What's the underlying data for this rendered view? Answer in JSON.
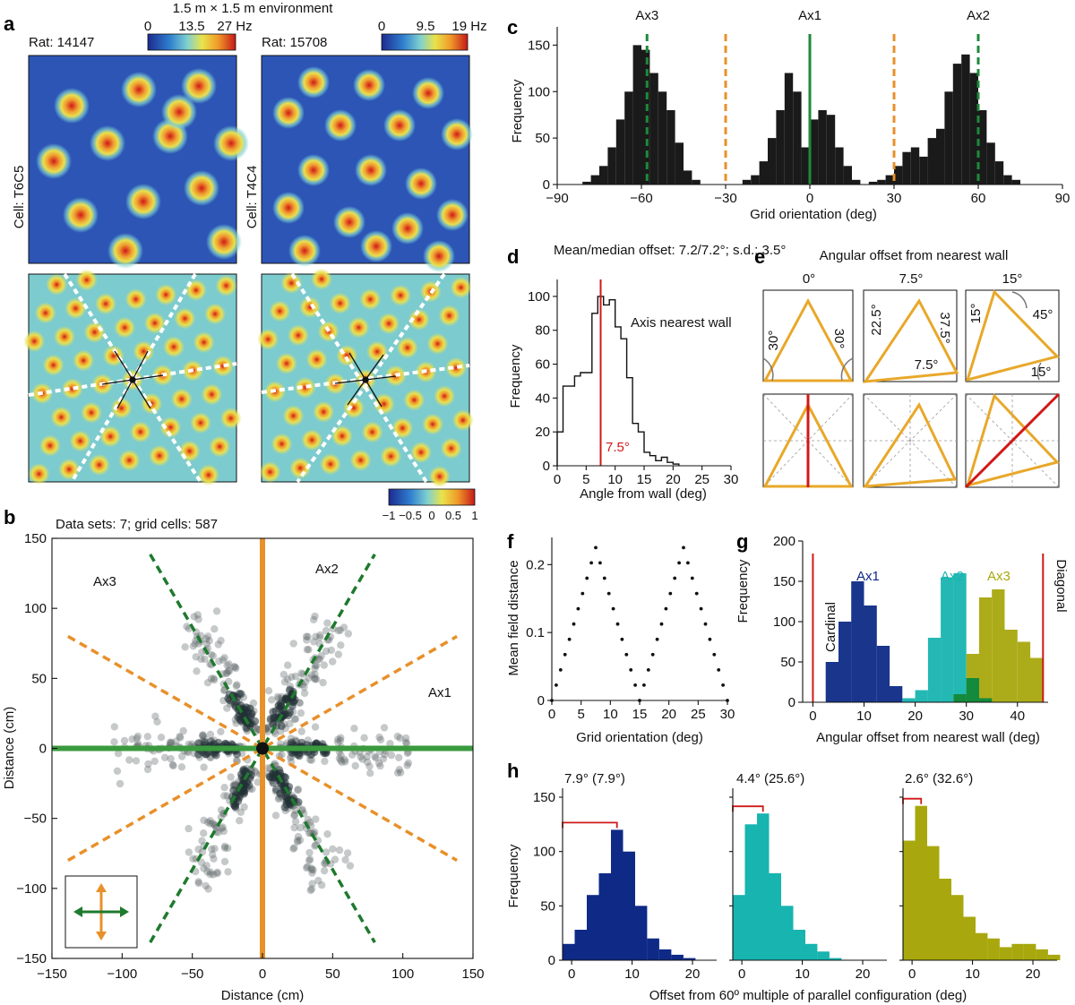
{
  "panel_labels": {
    "a": "a",
    "b": "b",
    "c": "c",
    "d": "d",
    "e": "e",
    "f": "f",
    "g": "g",
    "h": "h"
  },
  "panel_a": {
    "environment": "1.5 m × 1.5 m environment",
    "left": {
      "rat": "Rat: 14147",
      "cell": "Cell: T6C5",
      "cbar_ticks": [
        "0",
        "13.5",
        "27 Hz"
      ]
    },
    "right": {
      "rat": "Rat: 15708",
      "cell": "Cell: T4C4",
      "cbar_ticks": [
        "0",
        "9.5",
        "19 Hz"
      ]
    },
    "autocorr_cbar_ticks": [
      "−1",
      "−0.5",
      "0",
      "0.5",
      "1"
    ],
    "colors": {
      "low": "#1c3f9f",
      "mid": "#7fc8d8",
      "high": "#e8b82a",
      "peak": "#c01818"
    }
  },
  "panel_b": {
    "header": "Data sets: 7; grid cells: 587",
    "xlabel": "Distance (cm)",
    "ylabel": "Distance (cm)",
    "axis_labels": {
      "ax1": "Ax1",
      "ax2": "Ax2",
      "ax3": "Ax3"
    },
    "xticks": [
      "−150",
      "−100",
      "−50",
      "0",
      "50",
      "100",
      "150"
    ],
    "yticks": [
      "150",
      "100",
      "50",
      "0",
      "−50",
      "−100",
      "−150"
    ],
    "colors": {
      "green": "#1e7a2e",
      "orange": "#e8902a",
      "points": "#5b6468"
    }
  },
  "panel_e": {
    "title": "Angular offset from nearest wall",
    "columns": [
      "0°",
      "7.5°",
      "15°"
    ],
    "angle_labels": {
      "c0": [
        "30°",
        "30°"
      ],
      "c1": [
        "22.5°",
        "37.5°",
        "7.5°"
      ],
      "c2": [
        "15°",
        "45°",
        "15°"
      ]
    },
    "colors": {
      "triangle": "#e8a82a",
      "red": "#d01818"
    }
  },
  "chart_data": [
    {
      "panel": "c",
      "type": "bar",
      "title": "",
      "xlabel": "Grid orientation (deg)",
      "ylabel": "Frequency",
      "xlim": [
        -90,
        90
      ],
      "ylim": [
        0,
        160
      ],
      "xticks": [
        "−90",
        "−60",
        "−30",
        "0",
        "30",
        "60",
        "90"
      ],
      "yticks": [
        "0",
        "50",
        "100",
        "150"
      ],
      "bin_width": 3,
      "bin_starts": [
        -81,
        -78,
        -75,
        -72,
        -69,
        -66,
        -63,
        -60,
        -57,
        -54,
        -51,
        -48,
        -45,
        -42,
        -24,
        -21,
        -18,
        -15,
        -12,
        -9,
        -6,
        -3,
        0,
        3,
        6,
        9,
        12,
        15,
        21,
        24,
        27,
        30,
        33,
        36,
        39,
        42,
        45,
        48,
        51,
        54,
        57,
        60,
        63,
        66,
        69,
        72
      ],
      "values": [
        3,
        10,
        20,
        40,
        70,
        100,
        150,
        145,
        120,
        100,
        80,
        45,
        15,
        5,
        5,
        10,
        25,
        50,
        80,
        120,
        100,
        40,
        70,
        80,
        75,
        40,
        20,
        5,
        3,
        5,
        10,
        20,
        35,
        40,
        30,
        50,
        60,
        100,
        130,
        140,
        120,
        80,
        45,
        25,
        10,
        5
      ],
      "markers": [
        {
          "label": "Ax3",
          "x": -58,
          "style": "green-dashed"
        },
        {
          "label": "Ax1",
          "x": 0,
          "style": "green-solid"
        },
        {
          "label": "Ax2",
          "x": 60,
          "style": "green-dashed"
        },
        {
          "label": "",
          "x": -30,
          "style": "orange-dashed"
        },
        {
          "label": "",
          "x": 30,
          "style": "orange-dashed"
        }
      ]
    },
    {
      "panel": "d",
      "type": "bar",
      "title": "Mean/median offset: 7.2/7.2°; s.d.: 3.5°",
      "xlabel": "Angle from wall (deg)",
      "ylabel": "Frequency",
      "xlim": [
        0,
        30
      ],
      "ylim": [
        0,
        110
      ],
      "xticks": [
        "0",
        "5",
        "10",
        "15",
        "20",
        "25",
        "30"
      ],
      "yticks": [
        "0",
        "20",
        "40",
        "60",
        "80",
        "100"
      ],
      "bin_width": 1,
      "bin_starts": [
        0,
        1,
        2,
        3,
        4,
        5,
        6,
        7,
        8,
        9,
        10,
        11,
        12,
        13,
        14,
        15,
        16,
        17,
        18,
        19,
        20
      ],
      "values": [
        20,
        47,
        47,
        53,
        55,
        55,
        90,
        100,
        95,
        98,
        82,
        75,
        52,
        25,
        20,
        8,
        6,
        3,
        5,
        2,
        1
      ],
      "annotations": [
        "Axis nearest wall",
        "7.5°"
      ],
      "marker_x": 7.5
    },
    {
      "panel": "f",
      "type": "line",
      "title": "",
      "xlabel": "Grid orientation (deg)",
      "ylabel": "Mean field distance",
      "xlim": [
        0,
        30
      ],
      "ylim": [
        0,
        0.24
      ],
      "xticks": [
        "0",
        "5",
        "10",
        "15",
        "20",
        "25",
        "30"
      ],
      "yticks": [
        "0",
        "0.1",
        "0.2"
      ],
      "x": [
        0,
        7.5,
        15,
        22.5,
        30
      ],
      "y": [
        0,
        0.225,
        0,
        0.225,
        0
      ]
    },
    {
      "panel": "g",
      "type": "bar",
      "title": "",
      "xlabel": "Angular offset from nearest wall (deg)",
      "ylabel": "Frequency",
      "xlim": [
        0,
        46
      ],
      "ylim": [
        0,
        200
      ],
      "xticks": [
        "0",
        "10",
        "20",
        "30",
        "40"
      ],
      "yticks": [
        "0",
        "50",
        "100",
        "150",
        "200"
      ],
      "bin_width": 2.5,
      "bin_starts": [
        0,
        2.5,
        5,
        7.5,
        10,
        12.5,
        15,
        17.5,
        20,
        22.5,
        25,
        27.5,
        30,
        32.5,
        35,
        37.5,
        40,
        42.5
      ],
      "series": [
        {
          "name": "Ax1",
          "color": "#0e2a86",
          "values": [
            0,
            50,
            100,
            150,
            120,
            70,
            20,
            0,
            0,
            0,
            0,
            0,
            0,
            0,
            0,
            0,
            0,
            0
          ]
        },
        {
          "name": "Ax2",
          "color": "#17b4b0",
          "values": [
            0,
            0,
            0,
            0,
            0,
            0,
            0,
            5,
            15,
            80,
            155,
            160,
            30,
            5,
            0,
            0,
            0,
            0
          ]
        },
        {
          "name": "Ax3",
          "color": "#a8a80e",
          "values": [
            0,
            0,
            0,
            0,
            0,
            0,
            0,
            0,
            0,
            0,
            0,
            10,
            60,
            130,
            140,
            90,
            75,
            55
          ]
        }
      ],
      "side_labels": [
        "Cardinal",
        "Diagonal"
      ]
    },
    {
      "panel": "h",
      "type": "bar",
      "title": "",
      "xlabel": "Offset from 60º multiple of parallel configuration (deg)",
      "ylabel": "Frequency",
      "xlim": [
        -1.5,
        24
      ],
      "ylim": [
        0,
        150
      ],
      "xticks": [
        "0",
        "10",
        "20"
      ],
      "yticks": [
        "0",
        "50",
        "100",
        "150"
      ],
      "bin_width": 2,
      "bin_starts": [
        -1.5,
        0.5,
        2.5,
        4.5,
        6.5,
        8.5,
        10.5,
        12.5,
        14.5,
        16.5,
        18.5,
        20.5,
        22.5
      ],
      "series": [
        {
          "name": "",
          "annotation": "7.9° (7.9°)",
          "color": "#0e2a86",
          "values": [
            15,
            28,
            60,
            80,
            120,
            100,
            50,
            20,
            10,
            5,
            2,
            0,
            0
          ]
        },
        {
          "name": "",
          "annotation": "4.4° (25.6°)",
          "color": "#17b4b0",
          "values": [
            60,
            125,
            135,
            80,
            50,
            28,
            15,
            8,
            2,
            0,
            0,
            0,
            0
          ]
        },
        {
          "name": "",
          "annotation": "2.6° (32.6°)",
          "color": "#a8a80e",
          "values": [
            110,
            142,
            105,
            75,
            60,
            40,
            25,
            20,
            12,
            15,
            15,
            10,
            5
          ]
        }
      ]
    }
  ]
}
